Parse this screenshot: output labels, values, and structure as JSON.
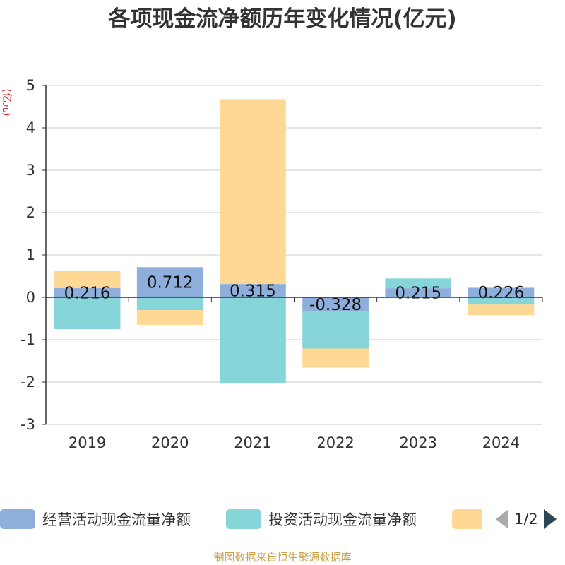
{
  "chart_data": {
    "type": "bar",
    "title": "各项现金流净额历年变化情况(亿元)",
    "ylabel": "(亿元)",
    "categories": [
      "2019",
      "2020",
      "2021",
      "2022",
      "2023",
      "2024"
    ],
    "ylim": [
      -3,
      5
    ],
    "yticks": [
      5,
      4,
      3,
      2,
      1,
      0,
      -1,
      -2,
      -3
    ],
    "stacked": true,
    "grid": true,
    "series": [
      {
        "name": "经营活动现金流量净额",
        "color": "#8eaedc",
        "values": [
          0.216,
          0.712,
          0.315,
          -0.328,
          0.215,
          0.226
        ],
        "show_labels": true
      },
      {
        "name": "投资活动现金流量净额",
        "color": "#86d5d8",
        "values": [
          -0.75,
          -0.3,
          -2.03,
          -0.88,
          0.23,
          -0.17
        ],
        "show_labels": false
      },
      {
        "name": "",
        "color": "#fed894",
        "values": [
          0.4,
          -0.35,
          4.36,
          -0.45,
          0.0,
          -0.25
        ],
        "show_labels": false
      }
    ]
  },
  "legend": {
    "page_indicator": "1/2"
  },
  "footer": {
    "source": "制图数据来自恒生聚源数据库"
  }
}
